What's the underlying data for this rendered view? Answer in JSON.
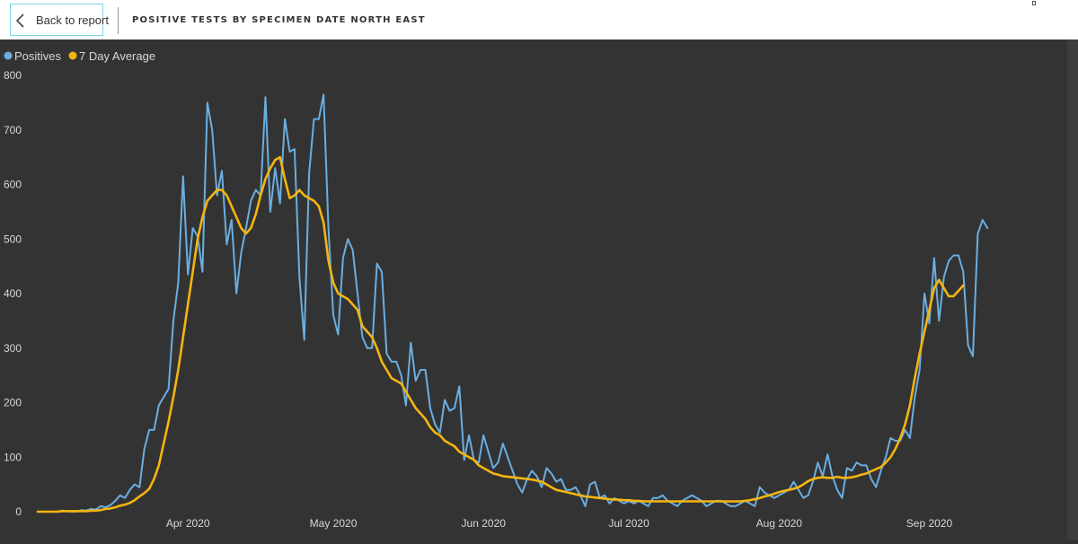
{
  "header": {
    "back_label": "Back to report",
    "title": "POSITIVE TESTS BY SPECIMEN DATE NORTH EAST"
  },
  "colors": {
    "background": "#333333",
    "positives": "#6baee0",
    "average": "#f5b50f",
    "text": "#d8d8d8"
  },
  "chart_data": {
    "type": "line",
    "title": "",
    "xlabel": "",
    "ylabel": "",
    "ylim": [
      0,
      800
    ],
    "yticks": [
      0,
      100,
      200,
      300,
      400,
      500,
      600,
      700,
      800
    ],
    "x_start": "2020-03-01",
    "xlim": [
      "2020-03-01",
      "2020-09-15"
    ],
    "xticks": [
      {
        "label": "Apr 2020",
        "date": "2020-04-01"
      },
      {
        "label": "May 2020",
        "date": "2020-05-01"
      },
      {
        "label": "Jun 2020",
        "date": "2020-06-01"
      },
      {
        "label": "Jul 2020",
        "date": "2020-07-01"
      },
      {
        "label": "Aug 2020",
        "date": "2020-08-01"
      },
      {
        "label": "Sep 2020",
        "date": "2020-09-01"
      }
    ],
    "legend": {
      "position": "top-left"
    },
    "grid": false,
    "series": [
      {
        "name": "Positives",
        "color": "#6baee0",
        "values": [
          0,
          0,
          0,
          0,
          0,
          2,
          1,
          0,
          0,
          3,
          2,
          5,
          4,
          10,
          8,
          12,
          20,
          30,
          25,
          40,
          50,
          45,
          115,
          150,
          150,
          195,
          210,
          225,
          350,
          420,
          615,
          435,
          520,
          505,
          440,
          750,
          700,
          580,
          625,
          490,
          535,
          400,
          475,
          520,
          570,
          590,
          580,
          760,
          550,
          630,
          565,
          720,
          660,
          665,
          430,
          315,
          620,
          720,
          720,
          765,
          520,
          360,
          325,
          465,
          500,
          480,
          400,
          320,
          300,
          300,
          455,
          440,
          290,
          275,
          275,
          250,
          195,
          310,
          240,
          260,
          260,
          190,
          160,
          145,
          205,
          185,
          190,
          230,
          95,
          140,
          95,
          90,
          140,
          110,
          80,
          90,
          125,
          100,
          75,
          50,
          35,
          60,
          75,
          65,
          45,
          80,
          70,
          55,
          60,
          40,
          40,
          45,
          30,
          10,
          50,
          55,
          25,
          30,
          15,
          25,
          20,
          15,
          20,
          15,
          20,
          15,
          10,
          25,
          25,
          30,
          20,
          15,
          10,
          20,
          25,
          30,
          25,
          20,
          10,
          15,
          20,
          20,
          15,
          10,
          10,
          15,
          20,
          15,
          10,
          45,
          35,
          30,
          25,
          30,
          35,
          40,
          55,
          40,
          25,
          30,
          55,
          90,
          65,
          105,
          65,
          40,
          25,
          80,
          75,
          90,
          85,
          85,
          60,
          45,
          75,
          100,
          135,
          130,
          130,
          150,
          135,
          210,
          260,
          400,
          345,
          465,
          350,
          430,
          460,
          470,
          470,
          440,
          305,
          285,
          510,
          535,
          520
        ]
      },
      {
        "name": "7 Day Average",
        "color": "#f5b50f",
        "values": [
          0,
          0,
          0,
          0,
          0,
          1,
          1,
          1,
          1,
          1,
          1,
          2,
          2,
          3,
          5,
          6,
          8,
          11,
          13,
          16,
          21,
          28,
          34,
          42,
          60,
          85,
          125,
          165,
          210,
          260,
          320,
          380,
          440,
          500,
          540,
          570,
          580,
          590,
          590,
          580,
          560,
          540,
          520,
          510,
          520,
          545,
          580,
          610,
          630,
          645,
          650,
          610,
          575,
          580,
          590,
          580,
          575,
          570,
          560,
          530,
          460,
          420,
          400,
          395,
          390,
          380,
          370,
          340,
          330,
          320,
          300,
          275,
          260,
          245,
          240,
          235,
          220,
          205,
          190,
          180,
          170,
          155,
          145,
          140,
          130,
          125,
          120,
          110,
          105,
          100,
          95,
          85,
          80,
          75,
          70,
          68,
          65,
          64,
          63,
          62,
          61,
          60,
          59,
          57,
          55,
          50,
          45,
          40,
          38,
          36,
          34,
          32,
          30,
          28,
          27,
          26,
          25,
          24,
          23,
          22,
          22,
          21,
          21,
          20,
          20,
          19,
          19,
          19,
          19,
          19,
          19,
          19,
          19,
          19,
          19,
          19,
          19,
          19,
          19,
          19,
          19,
          19,
          19,
          19,
          19,
          19,
          20,
          21,
          23,
          25,
          28,
          30,
          33,
          36,
          38,
          40,
          42,
          45,
          50,
          56,
          60,
          62,
          63,
          62,
          62,
          64,
          62,
          62,
          63,
          65,
          68,
          70,
          74,
          78,
          82,
          90,
          100,
          115,
          135,
          160,
          195,
          245,
          290,
          330,
          370,
          410,
          425,
          410,
          395,
          395,
          405,
          415
        ]
      }
    ]
  }
}
